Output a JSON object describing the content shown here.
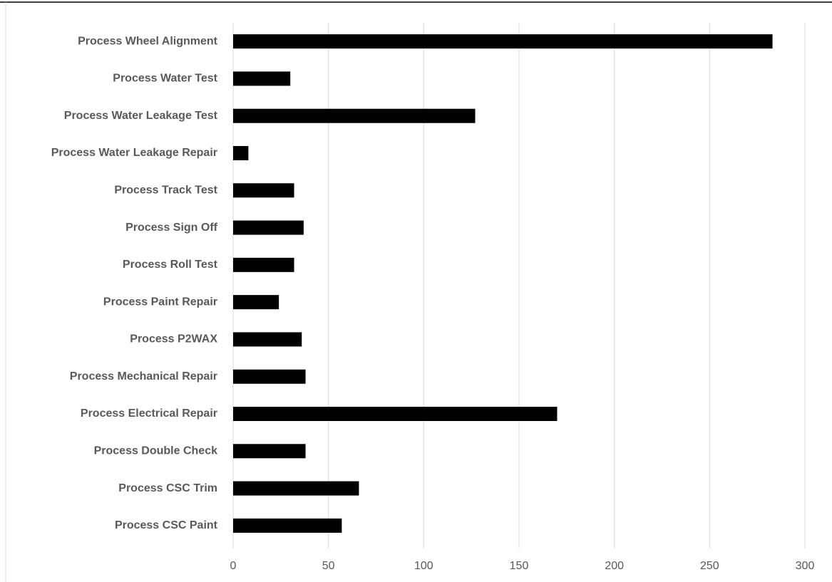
{
  "chart_data": {
    "type": "bar",
    "orientation": "horizontal",
    "categories": [
      "Process Wheel Alignment",
      "Process Water Test",
      "Process Water Leakage Test",
      "Process Water Leakage Repair",
      "Process Track Test",
      "Process Sign Off",
      "Process Roll Test",
      "Process Paint Repair",
      "Process P2WAX",
      "Process Mechanical Repair",
      "Process Electrical Repair",
      "Process Double Check",
      "Process CSC Trim",
      "Process CSC Paint"
    ],
    "values": [
      283,
      30,
      127,
      8,
      32,
      37,
      32,
      24,
      36,
      38,
      170,
      38,
      66,
      57
    ],
    "color": "#000000",
    "xlim": [
      0,
      300
    ],
    "xticks": [
      0,
      50,
      100,
      150,
      200,
      250,
      300
    ],
    "grid": true
  }
}
